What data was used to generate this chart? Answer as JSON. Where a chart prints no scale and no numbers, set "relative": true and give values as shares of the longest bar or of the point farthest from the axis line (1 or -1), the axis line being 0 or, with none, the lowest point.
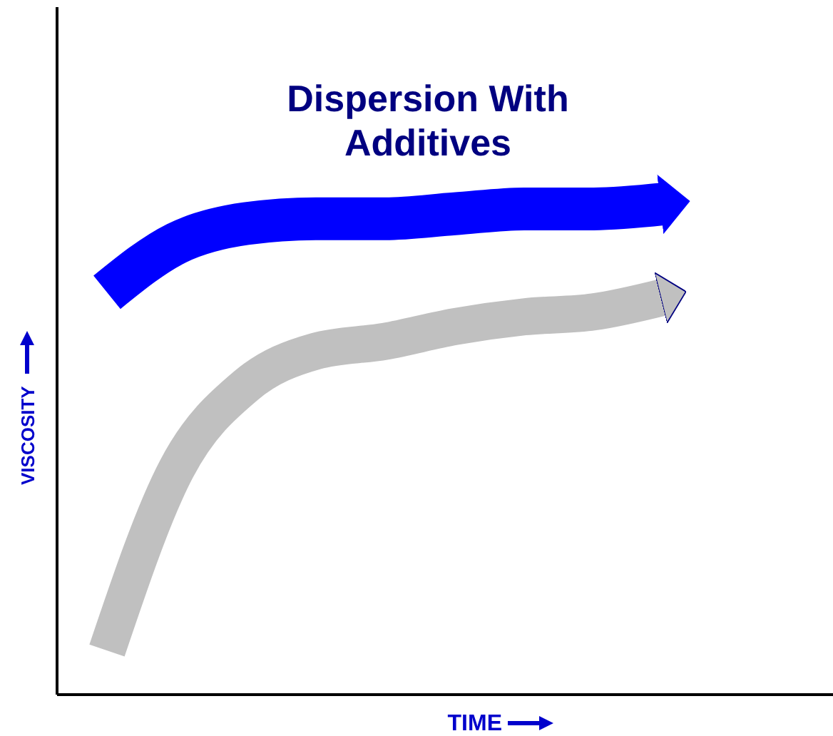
{
  "chart_data": {
    "type": "line",
    "relative": true,
    "xlabel": "TIME",
    "ylabel": "VISCOSITY",
    "legend": false,
    "line_style": "solid",
    "marker": "none",
    "categories": [
      null,
      null,
      null,
      null,
      null,
      null,
      null,
      null,
      null
    ],
    "series": [
      {
        "name": "Dispersion With Additives",
        "color": "#0000ff",
        "values": [
          0.82,
          0.92,
          0.96,
          0.97,
          0.97,
          0.98,
          0.99,
          0.99,
          1.0
        ]
      },
      {
        "color": "#c0c0c0",
        "values": [
          0.09,
          0.46,
          0.63,
          0.7,
          0.72,
          0.75,
          0.77,
          0.78,
          0.81
        ]
      }
    ]
  }
}
